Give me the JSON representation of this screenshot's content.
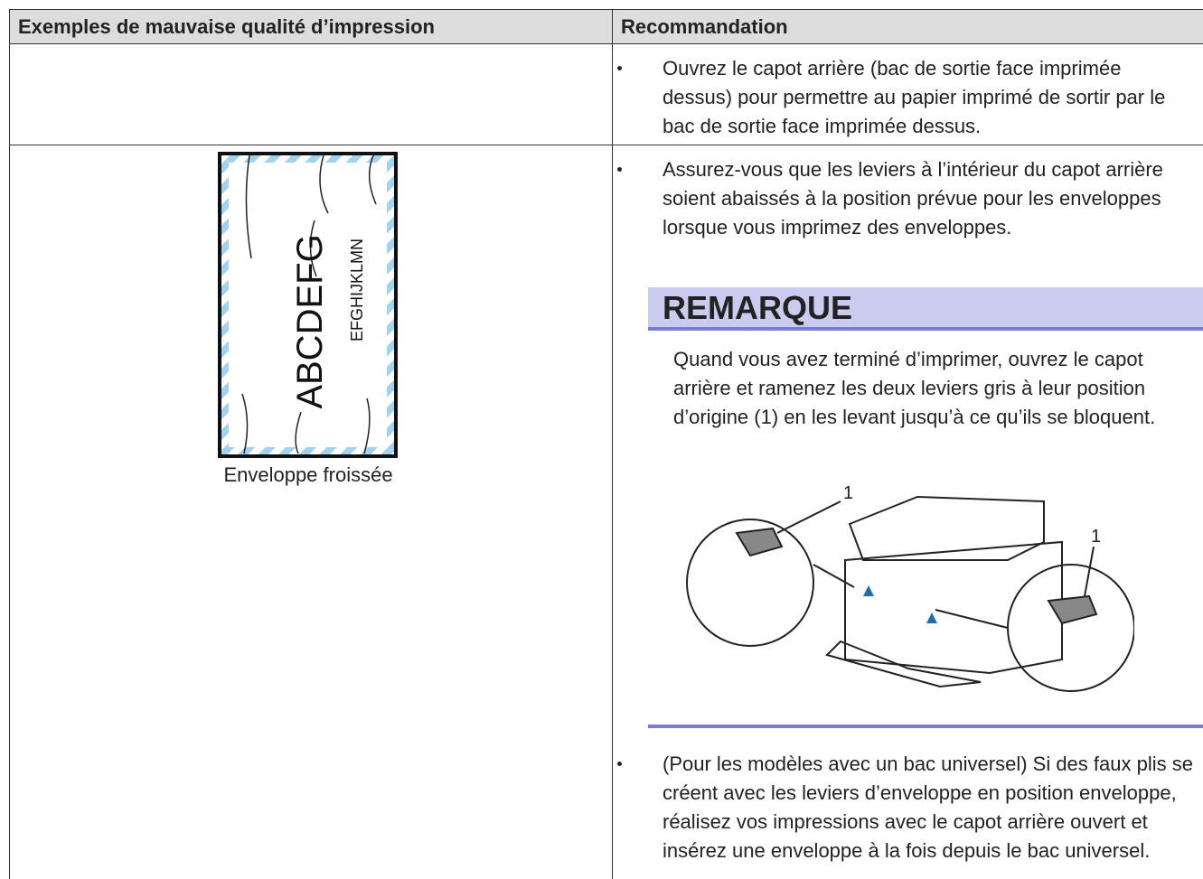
{
  "table": {
    "headers": [
      "Exemples de mauvaise qualité d’impression",
      "Recommandation"
    ],
    "rows": [
      {
        "recommendations": [
          "Ouvrez le capot arrière (bac de sortie face imprimée dessus) pour permettre au papier imprimé de sortir par le bac de sortie face imprimée dessus."
        ]
      },
      {
        "example": {
          "text_large": "ABCDEFG",
          "text_small": "EFGHIJKLMN",
          "caption": "Enveloppe froissée"
        },
        "recommendations": [
          "Assurez-vous que les leviers à l’intérieur du capot arrière soient abaissés à la position prévue pour les enveloppes lorsque vous imprimez des enveloppes.",
          "(Pour les modèles avec un bac universel) Si des faux plis se créent avec les leviers d’enveloppe en position enveloppe, réalisez vos impressions avec le capot arrière ouvert et insérez une enveloppe à la fois depuis le bac universel."
        ],
        "note": {
          "title": "REMARQUE",
          "text": "Quand vous avez terminé d’imprimer, ouvrez le capot arrière et ramenez les deux leviers gris à leur position d’origine (1) en les levant jusqu’à ce qu’ils se bloquent.",
          "callouts": [
            "1",
            "1"
          ]
        }
      }
    ]
  }
}
